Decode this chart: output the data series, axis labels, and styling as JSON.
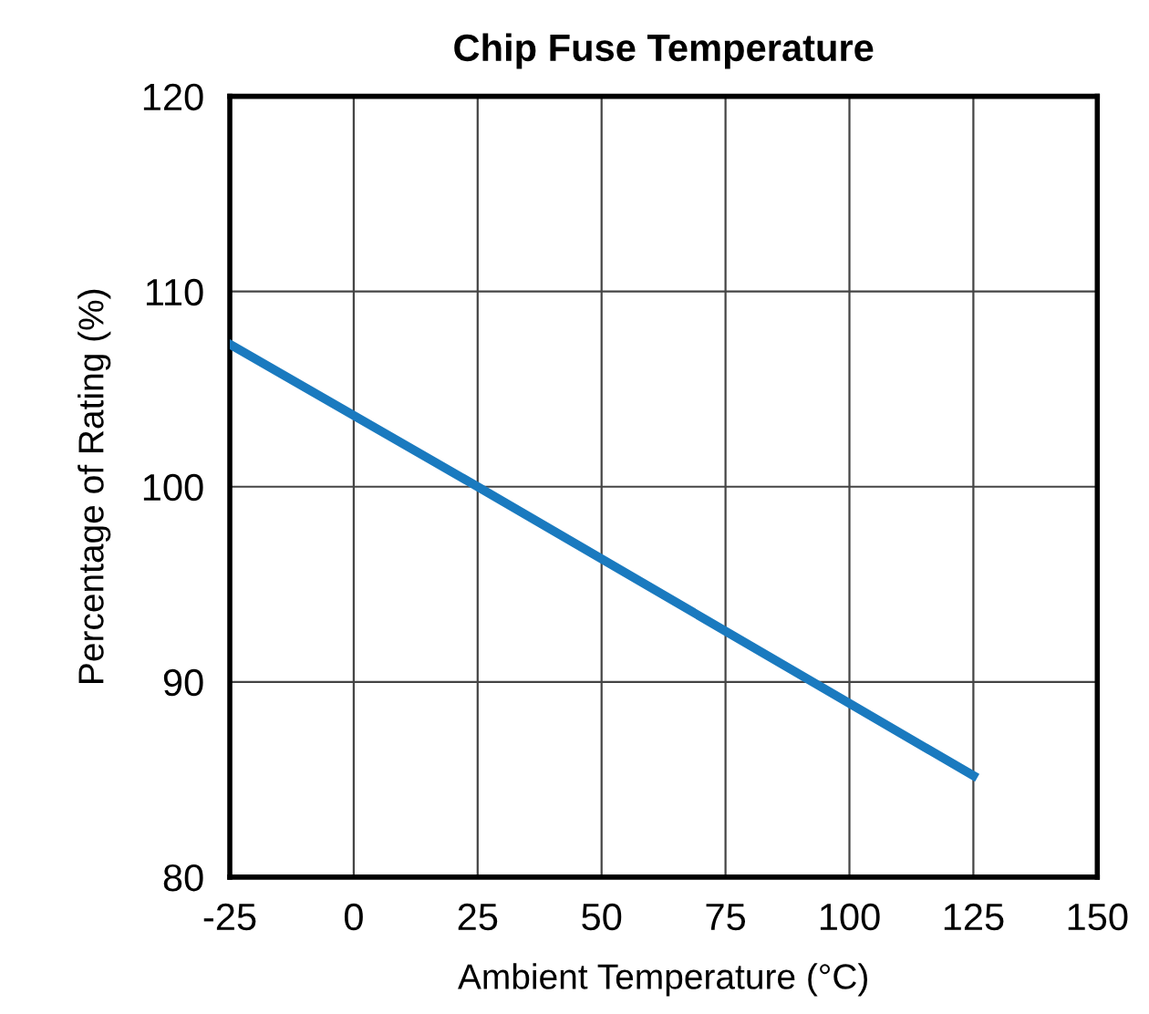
{
  "chart_data": {
    "type": "line",
    "title": "Chip Fuse Temperature",
    "xlabel": "Ambient Temperature (°C)",
    "ylabel": "Percentage of Rating (%)",
    "x": [
      -25,
      25,
      125
    ],
    "series": [
      {
        "color": "#1a7abf",
        "values": [
          107.3,
          100,
          85.2
        ]
      }
    ],
    "xlim": [
      -25,
      150
    ],
    "xticks": [
      -25,
      0,
      25,
      50,
      75,
      100,
      125,
      150
    ],
    "ylim": [
      80,
      120
    ],
    "yticks": [
      80,
      90,
      100,
      110,
      120
    ],
    "grid": true,
    "legend": false,
    "marker": "none",
    "line_style": "solid"
  }
}
